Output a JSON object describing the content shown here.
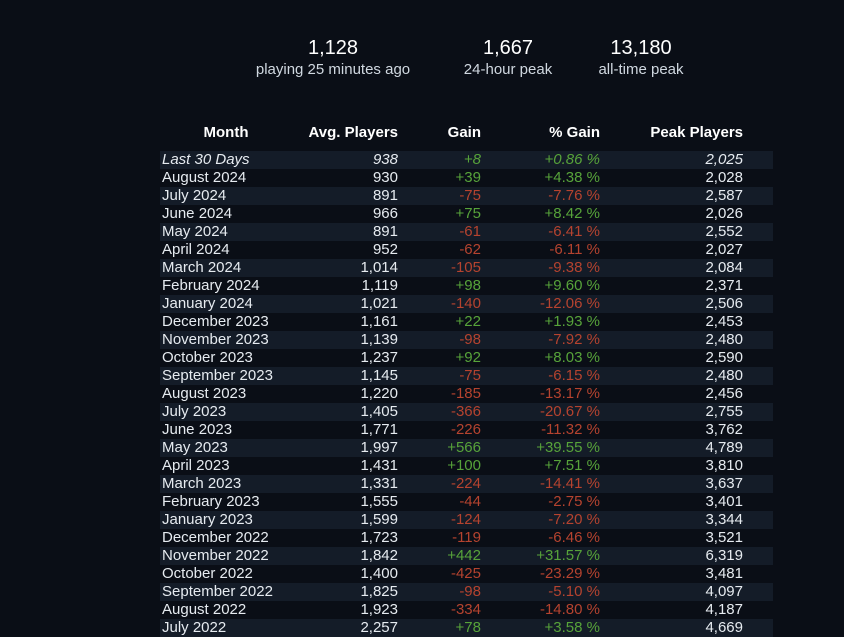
{
  "stats": [
    {
      "value": "1,128",
      "label": "playing 25 minutes ago"
    },
    {
      "value": "1,667",
      "label": "24-hour peak"
    },
    {
      "value": "13,180",
      "label": "all-time peak"
    }
  ],
  "table": {
    "headers": [
      "Month",
      "Avg. Players",
      "Gain",
      "% Gain",
      "Peak Players"
    ],
    "rows": [
      [
        "Last 30 Days",
        "938",
        "+8",
        "+0.86 %",
        "2,025"
      ],
      [
        "August 2024",
        "930",
        "+39",
        "+4.38 %",
        "2,028"
      ],
      [
        "July 2024",
        "891",
        "-75",
        "-7.76 %",
        "2,587"
      ],
      [
        "June 2024",
        "966",
        "+75",
        "+8.42 %",
        "2,026"
      ],
      [
        "May 2024",
        "891",
        "-61",
        "-6.41 %",
        "2,552"
      ],
      [
        "April 2024",
        "952",
        "-62",
        "-6.11 %",
        "2,027"
      ],
      [
        "March 2024",
        "1,014",
        "-105",
        "-9.38 %",
        "2,084"
      ],
      [
        "February 2024",
        "1,119",
        "+98",
        "+9.60 %",
        "2,371"
      ],
      [
        "January 2024",
        "1,021",
        "-140",
        "-12.06 %",
        "2,506"
      ],
      [
        "December 2023",
        "1,161",
        "+22",
        "+1.93 %",
        "2,453"
      ],
      [
        "November 2023",
        "1,139",
        "-98",
        "-7.92 %",
        "2,480"
      ],
      [
        "October 2023",
        "1,237",
        "+92",
        "+8.03 %",
        "2,590"
      ],
      [
        "September 2023",
        "1,145",
        "-75",
        "-6.15 %",
        "2,480"
      ],
      [
        "August 2023",
        "1,220",
        "-185",
        "-13.17 %",
        "2,456"
      ],
      [
        "July 2023",
        "1,405",
        "-366",
        "-20.67 %",
        "2,755"
      ],
      [
        "June 2023",
        "1,771",
        "-226",
        "-11.32 %",
        "3,762"
      ],
      [
        "May 2023",
        "1,997",
        "+566",
        "+39.55 %",
        "4,789"
      ],
      [
        "April 2023",
        "1,431",
        "+100",
        "+7.51 %",
        "3,810"
      ],
      [
        "March 2023",
        "1,331",
        "-224",
        "-14.41 %",
        "3,637"
      ],
      [
        "February 2023",
        "1,555",
        "-44",
        "-2.75 %",
        "3,401"
      ],
      [
        "January 2023",
        "1,599",
        "-124",
        "-7.20 %",
        "3,344"
      ],
      [
        "December 2022",
        "1,723",
        "-119",
        "-6.46 %",
        "3,521"
      ],
      [
        "November 2022",
        "1,842",
        "+442",
        "+31.57 %",
        "6,319"
      ],
      [
        "October 2022",
        "1,400",
        "-425",
        "-23.29 %",
        "3,481"
      ],
      [
        "September 2022",
        "1,825",
        "-98",
        "-5.10 %",
        "4,097"
      ],
      [
        "August 2022",
        "1,923",
        "-334",
        "-14.80 %",
        "4,187"
      ],
      [
        "July 2022",
        "2,257",
        "+78",
        "+3.58 %",
        "4,669"
      ]
    ]
  }
}
